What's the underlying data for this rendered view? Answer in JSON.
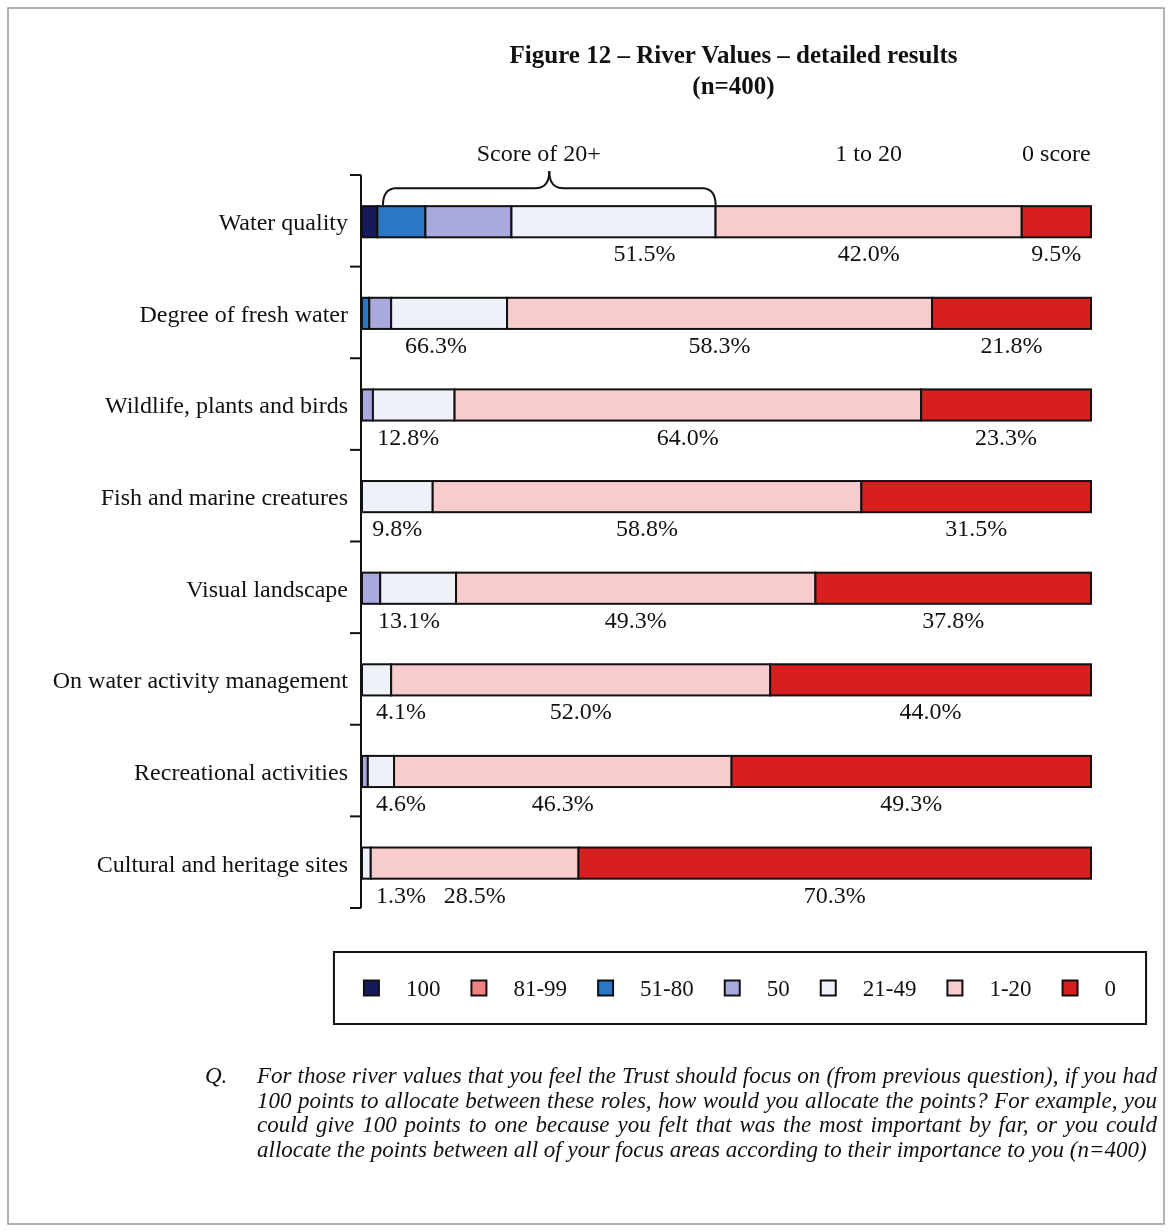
{
  "chart_data": {
    "type": "bar",
    "orientation": "horizontal",
    "stacked": true,
    "title": "Figure 12 – River Values – detailed results",
    "subtitle": "(n=400)",
    "categories": [
      "Water quality",
      "Degree of fresh water",
      "Wildlife, plants and birds",
      "Fish and marine creatures",
      "Visual landscape",
      "On water activity management",
      "Recreational activities",
      "Cultural and heritage sites"
    ],
    "series": [
      {
        "name": "100",
        "color": "#141a5c",
        "values": [
          2.1,
          null,
          null,
          null,
          null,
          null,
          null,
          null
        ]
      },
      {
        "name": "81-99",
        "color": "#f08282",
        "values": [
          null,
          null,
          null,
          null,
          null,
          null,
          null,
          null
        ]
      },
      {
        "name": "51-80",
        "color": "#2b77c3",
        "values": [
          6.6,
          1.0,
          null,
          null,
          null,
          null,
          null,
          null
        ]
      },
      {
        "name": "50",
        "color": "#a9a9e0",
        "values": [
          11.8,
          3.0,
          1.5,
          null,
          2.5,
          null,
          0.8,
          null
        ]
      },
      {
        "name": "21-49",
        "color": "#eef2f8",
        "values": [
          28.0,
          15.9,
          11.2,
          9.7,
          10.4,
          4.0,
          3.6,
          1.2
        ]
      },
      {
        "name": "1-20",
        "color": "#f8cccc",
        "values": [
          42.0,
          58.3,
          64.0,
          58.8,
          49.3,
          52.0,
          46.3,
          28.5
        ],
        "value_labels": [
          "42.0%",
          "58.3%",
          "64.0%",
          "58.8%",
          "49.3%",
          "52.0%",
          "46.3%",
          "28.5%"
        ]
      },
      {
        "name": "0",
        "color": "#d81f1f",
        "values": [
          9.5,
          21.8,
          23.3,
          31.5,
          37.8,
          44.0,
          49.3,
          70.3
        ],
        "value_labels": [
          "9.5%",
          "21.8%",
          "23.3%",
          "31.5%",
          "37.8%",
          "44.0%",
          "49.3%",
          "70.3%"
        ]
      }
    ],
    "legend": "bottom",
    "tick_labels": "y",
    "annotations": [
      "Score of 20+",
      "1 to 20",
      "0 score",
      {
        "text": "51.5%",
        "x": 48.5,
        "y": "Water quality"
      },
      {
        "text": "66.3%",
        "x": 19.9,
        "y": "Degree of fresh water"
      },
      {
        "text": "12.8%",
        "x": 12.7,
        "y": "Wildlife, plants and birds"
      },
      {
        "text": "9.8%",
        "x": 9.7,
        "y": "Fish and marine creatures"
      },
      {
        "text": "13.1%",
        "x": 12.9,
        "y": "Visual landscape"
      },
      {
        "text": "4.1%",
        "x": 4.0,
        "y": "On water activity management"
      },
      {
        "text": "4.6%",
        "x": 4.4,
        "y": "Recreational activities"
      },
      {
        "text": "1.3%",
        "x": 1.2,
        "y": "Cultural and heritage sites"
      },
      "Q. For those river values that you feel the Trust should focus on (from previous question), if you had 100 points to allocate between these roles, how would you allocate the points? For example, you could give 100 points to one because you felt that was the most important by far, or you could allocate the points between all of your focus areas according to their importance to you (n=400)"
    ]
  }
}
